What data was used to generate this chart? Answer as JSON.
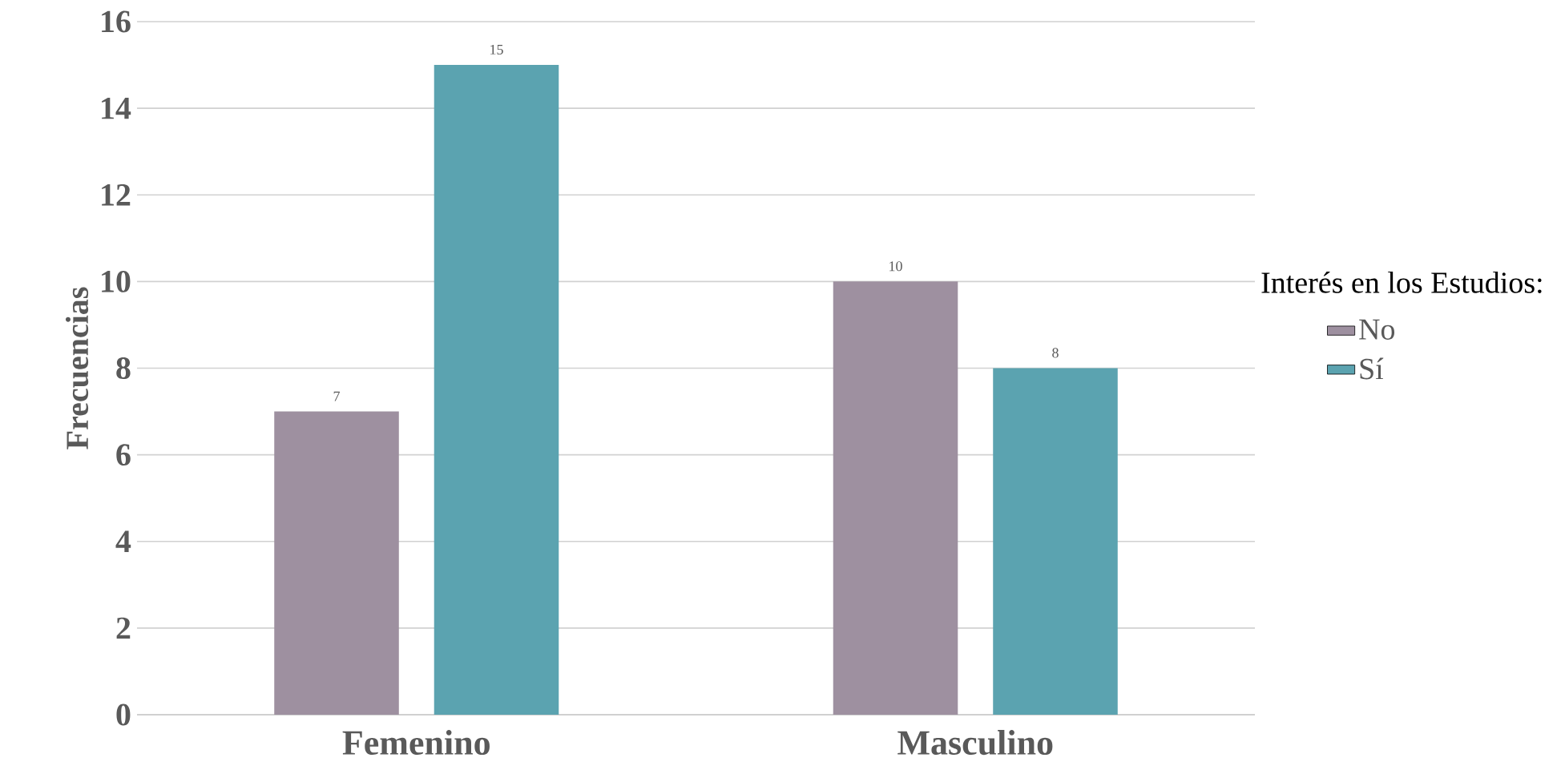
{
  "chart_data": {
    "type": "bar",
    "ylabel": "Frecuencias",
    "categories": [
      "Femenino",
      "Masculino"
    ],
    "series": [
      {
        "name": "No",
        "color": "#9e90a0",
        "values": [
          7,
          10
        ]
      },
      {
        "name": "Sí",
        "color": "#5ba3b0",
        "values": [
          15,
          8
        ]
      }
    ],
    "ylim": [
      0,
      16
    ],
    "yticks": [
      0,
      2,
      4,
      6,
      8,
      10,
      12,
      14,
      16
    ],
    "grid": "y",
    "legend": "right",
    "legend_title": "Interés en los Estudios:",
    "data_labels": true
  }
}
